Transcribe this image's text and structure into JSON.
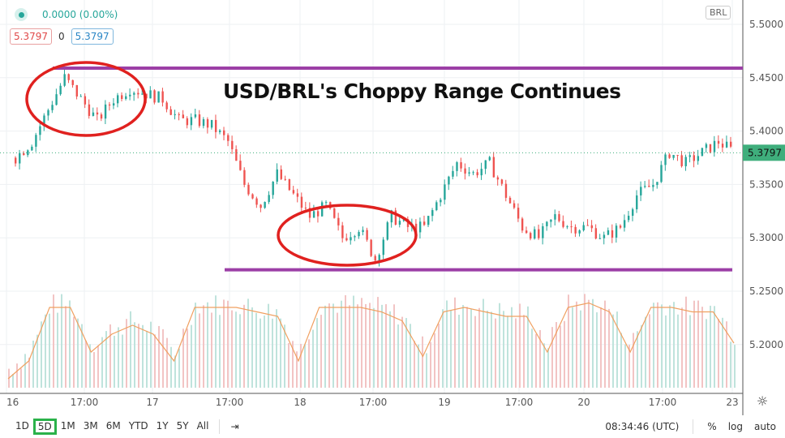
{
  "legend": {
    "change": "0.0000 (0.00%)",
    "sell": "5.3797",
    "spread": "0",
    "buy": "5.3797"
  },
  "currency_badge": "BRL",
  "annotation_title": "USD/BRL's Choppy Range Continues",
  "toolbar": {
    "ranges": [
      "1D",
      "5D",
      "1M",
      "3M",
      "6M",
      "YTD",
      "1Y",
      "5Y",
      "All"
    ],
    "selected": "5D",
    "time": "08:34:46 (UTC)",
    "percent": "%",
    "log": "log",
    "auto": "auto"
  },
  "colors": {
    "up": "#26a69a",
    "down": "#ef5350",
    "resistance": "#9c3fa6",
    "circle": "#e0211f",
    "volume_ma": "#f0a060",
    "last_price": "#3fae7c"
  },
  "chart_data": {
    "type": "candlestick",
    "title": "USD/BRL's Choppy Range Continues",
    "x_ticks": [
      "16",
      "17:00",
      "17",
      "17:00",
      "18",
      "17:00",
      "19",
      "17:00",
      "20",
      "17:00",
      "23"
    ],
    "y_ticks": [
      "5.5000",
      "5.4500",
      "5.4000",
      "5.3500",
      "5.3000",
      "5.2500",
      "5.2000"
    ],
    "ylim": [
      5.16,
      5.51
    ],
    "last_price": "5.3797",
    "close": [
      5.375,
      5.39,
      5.42,
      5.45,
      5.43,
      5.41,
      5.43,
      5.44,
      5.435,
      5.43,
      5.41,
      5.41,
      5.405,
      5.39,
      5.35,
      5.33,
      5.36,
      5.34,
      5.32,
      5.33,
      5.3,
      5.31,
      5.28,
      5.32,
      5.31,
      5.31,
      5.34,
      5.37,
      5.36,
      5.37,
      5.34,
      5.31,
      5.3,
      5.32,
      5.31,
      5.31,
      5.3,
      5.31,
      5.34,
      5.35,
      5.38,
      5.37,
      5.38,
      5.39,
      5.38
    ],
    "resistance": 5.459,
    "support": 5.27,
    "volume_ma": [
      0.1,
      0.3,
      0.9,
      0.9,
      0.4,
      0.6,
      0.7,
      0.6,
      0.3,
      0.9,
      0.9,
      0.9,
      0.85,
      0.8,
      0.3,
      0.9,
      0.9,
      0.9,
      0.85,
      0.75,
      0.35,
      0.85,
      0.9,
      0.85,
      0.8,
      0.8,
      0.4,
      0.9,
      0.95,
      0.85,
      0.4,
      0.9,
      0.9,
      0.85,
      0.85,
      0.5
    ],
    "grid": true
  }
}
